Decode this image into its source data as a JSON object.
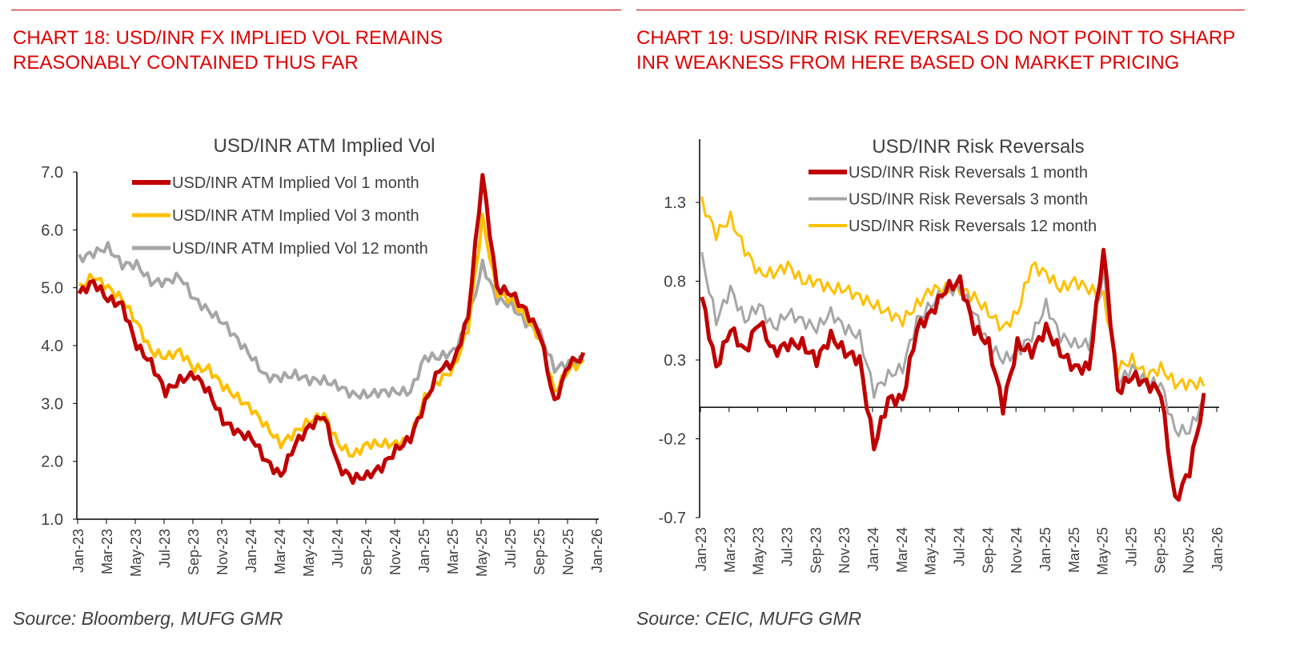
{
  "left": {
    "heading": "CHART 18: USD/INR FX IMPLIED VOL REMAINS REASONABLY CONTAINED THUS FAR",
    "source": "Source: Bloomberg, MUFG GMR"
  },
  "right": {
    "heading": "CHART 19: USD/INR RISK REVERSALS DO NOT POINT TO SHARP INR WEAKNESS FROM HERE BASED ON MARKET PRICING",
    "source": "Source: CEIC, MUFG GMR"
  },
  "colors": {
    "accent": "#e00000",
    "red": "#c00000",
    "gold": "#ffc000",
    "grey": "#a6a6a6"
  },
  "chart_data": [
    {
      "type": "line",
      "title": "USD/INR ATM Implied Vol",
      "ylim": [
        1.0,
        7.0
      ],
      "yticks": [
        "1.0",
        "2.0",
        "3.0",
        "4.0",
        "5.0",
        "6.0",
        "7.0"
      ],
      "xticks": [
        "Jan-23",
        "Mar-23",
        "May-23",
        "Jul-23",
        "Sep-23",
        "Nov-23",
        "Jan-24",
        "Mar-24",
        "May-24",
        "Jul-24",
        "Sep-24",
        "Nov-24",
        "Jan-25",
        "Mar-25",
        "May-25",
        "Jul-25",
        "Sep-25",
        "Nov-25",
        "Jan-26"
      ],
      "legend": "top-center",
      "x": [
        "2023-01",
        "2023-02",
        "2023-03",
        "2023-04",
        "2023-05",
        "2023-06",
        "2023-07",
        "2023-08",
        "2023-09",
        "2023-10",
        "2023-11",
        "2023-12",
        "2024-01",
        "2024-02",
        "2024-03",
        "2024-04",
        "2024-05",
        "2024-06",
        "2024-07",
        "2024-08",
        "2024-09",
        "2024-10",
        "2024-11",
        "2024-12",
        "2025-01",
        "2025-02",
        "2025-03",
        "2025-04",
        "2025-05",
        "2025-06",
        "2025-07",
        "2025-08",
        "2025-09",
        "2025-10",
        "2025-11",
        "2025-12"
      ],
      "series": [
        {
          "name": "USD/INR ATM Implied Vol 1 month",
          "color": "#c00000",
          "values": [
            4.9,
            5.1,
            4.8,
            4.7,
            4.0,
            3.7,
            3.2,
            3.4,
            3.5,
            3.2,
            2.7,
            2.5,
            2.4,
            2.0,
            1.75,
            2.3,
            2.6,
            2.8,
            1.9,
            1.7,
            1.75,
            1.9,
            2.2,
            2.4,
            3.0,
            3.6,
            3.7,
            4.5,
            6.95,
            5.0,
            4.9,
            4.6,
            4.2,
            3.0,
            3.7,
            3.8
          ]
        },
        {
          "name": "USD/INR ATM Implied Vol 3 month",
          "color": "#ffc000",
          "values": [
            5.0,
            5.2,
            5.0,
            4.8,
            4.4,
            3.9,
            3.8,
            3.9,
            3.6,
            3.6,
            3.3,
            3.1,
            2.9,
            2.6,
            2.3,
            2.5,
            2.7,
            2.8,
            2.3,
            2.1,
            2.3,
            2.3,
            2.3,
            2.4,
            3.1,
            3.4,
            3.6,
            4.3,
            6.2,
            4.9,
            4.8,
            4.5,
            4.1,
            3.2,
            3.6,
            3.7
          ]
        },
        {
          "name": "USD/INR ATM Implied Vol 12 month",
          "color": "#a6a6a6",
          "values": [
            5.5,
            5.6,
            5.7,
            5.4,
            5.4,
            5.1,
            5.1,
            5.2,
            4.8,
            4.6,
            4.4,
            4.1,
            3.8,
            3.45,
            3.45,
            3.5,
            3.4,
            3.4,
            3.3,
            3.15,
            3.15,
            3.2,
            3.2,
            3.2,
            3.8,
            3.8,
            3.9,
            4.4,
            5.4,
            4.8,
            4.7,
            4.4,
            4.2,
            3.6,
            3.7,
            3.75
          ]
        }
      ]
    },
    {
      "type": "line",
      "title": "USD/INR Risk Reversals",
      "ylim": [
        -0.7,
        1.6
      ],
      "yticks": [
        "-0.7",
        "-0.2",
        "0.3",
        "0.8",
        "1.3"
      ],
      "xticks": [
        "Jan-23",
        "Mar-23",
        "May-23",
        "Jul-23",
        "Sep-23",
        "Nov-23",
        "Jan-24",
        "Mar-24",
        "May-24",
        "Jul-24",
        "Sep-24",
        "Nov-24",
        "Jan-25",
        "Mar-25",
        "May-25",
        "Jul-25",
        "Sep-25",
        "Nov-25",
        "Jan-26"
      ],
      "legend": "top-center",
      "x": [
        "2023-01",
        "2023-02",
        "2023-03",
        "2023-04",
        "2023-05",
        "2023-06",
        "2023-07",
        "2023-08",
        "2023-09",
        "2023-10",
        "2023-11",
        "2023-12",
        "2024-01",
        "2024-02",
        "2024-03",
        "2024-04",
        "2024-05",
        "2024-06",
        "2024-07",
        "2024-08",
        "2024-09",
        "2024-10",
        "2024-11",
        "2024-12",
        "2025-01",
        "2025-02",
        "2025-03",
        "2025-04",
        "2025-05",
        "2025-06",
        "2025-07",
        "2025-08",
        "2025-09",
        "2025-10",
        "2025-11",
        "2025-12"
      ],
      "series": [
        {
          "name": "USD/INR Risk Reversals 1 month",
          "color": "#c00000",
          "values": [
            0.7,
            0.25,
            0.5,
            0.35,
            0.55,
            0.35,
            0.4,
            0.4,
            0.3,
            0.45,
            0.35,
            0.3,
            -0.25,
            0.05,
            0.05,
            0.5,
            0.6,
            0.75,
            0.8,
            0.5,
            0.4,
            0.0,
            0.4,
            0.35,
            0.5,
            0.35,
            0.25,
            0.25,
            1.0,
            0.1,
            0.2,
            0.15,
            0.1,
            -0.6,
            -0.4,
            0.05
          ]
        },
        {
          "name": "USD/INR Risk Reversals 3 month",
          "color": "#a6a6a6",
          "values": [
            0.95,
            0.55,
            0.75,
            0.55,
            0.65,
            0.5,
            0.6,
            0.55,
            0.5,
            0.6,
            0.5,
            0.45,
            0.1,
            0.2,
            0.25,
            0.55,
            0.65,
            0.75,
            0.75,
            0.6,
            0.4,
            0.3,
            0.35,
            0.45,
            0.65,
            0.45,
            0.4,
            0.4,
            0.85,
            0.15,
            0.25,
            0.15,
            0.15,
            -0.15,
            -0.15,
            0.05
          ]
        },
        {
          "name": "USD/INR Risk Reversals 12 month",
          "color": "#ffc000",
          "values": [
            1.3,
            1.1,
            1.2,
            1.0,
            0.85,
            0.85,
            0.9,
            0.8,
            0.8,
            0.75,
            0.75,
            0.7,
            0.65,
            0.6,
            0.55,
            0.65,
            0.75,
            0.75,
            0.75,
            0.7,
            0.6,
            0.5,
            0.6,
            0.9,
            0.85,
            0.75,
            0.8,
            0.75,
            0.7,
            0.25,
            0.3,
            0.2,
            0.25,
            0.15,
            0.15,
            0.15
          ]
        }
      ]
    }
  ]
}
